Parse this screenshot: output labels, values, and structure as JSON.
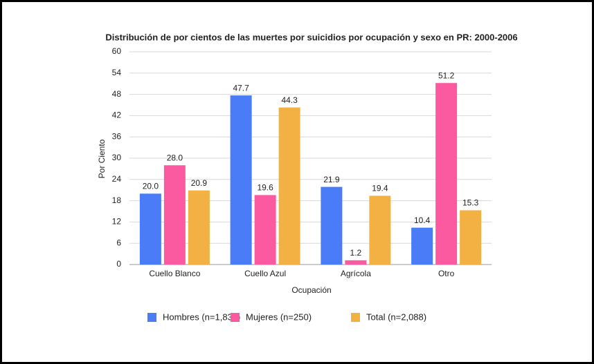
{
  "chart_data": {
    "type": "bar",
    "title": "Distribución de por cientos de las muertes por suicidios por ocupación y sexo en PR: 2000-2006",
    "y_label": "Por Ciento",
    "x_label": "Ocupación",
    "categories": [
      "Cuello Blanco",
      "Cuello Azul",
      "Agrícola",
      "Otro"
    ],
    "series": [
      {
        "name": "Hombres (n=1,838)",
        "color": "#4a7cf7",
        "values": [
          20,
          47.7,
          21.9,
          10.4
        ],
        "value_labels": [
          "20.0",
          "47.7",
          "21.9",
          "10.4"
        ]
      },
      {
        "name": "Mujeres (n=250)",
        "color": "#fc5aa0",
        "values": [
          28,
          19.6,
          1.2,
          51.2
        ],
        "value_labels": [
          "28.0",
          "19.6",
          "1.2",
          "51.2"
        ]
      },
      {
        "name": "Total (n=2,088)",
        "color": "#f4b143",
        "values": [
          20.9,
          44.3,
          19.4,
          15.3
        ],
        "value_labels": [
          "20.9",
          "44.3",
          "19.4",
          "15.3"
        ]
      }
    ],
    "ylim": [
      0,
      60
    ],
    "yticks": [
      0,
      6,
      12,
      18,
      24,
      30,
      36,
      42,
      48,
      54,
      60
    ],
    "grid": true,
    "legend": "bottom"
  }
}
